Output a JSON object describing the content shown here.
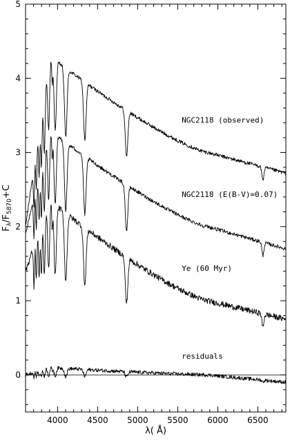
{
  "chart_data": {
    "type": "line",
    "xlabel": "λ( Å)",
    "ylabel": "Fλ/F5870+C",
    "ylabel_parts": {
      "base": "F",
      "lambda": "λ",
      "sep": "/F",
      "sub": "5870",
      "tail": "+C"
    },
    "xlim": [
      3600,
      6850
    ],
    "ylim": [
      -0.5,
      5
    ],
    "xticks": [
      4000,
      4500,
      5000,
      5500,
      6000,
      6500
    ],
    "yticks": [
      0,
      1,
      2,
      3,
      4,
      5
    ],
    "grid": false,
    "zero_line": 0,
    "lines": [
      {
        "offset": 2.85,
        "y_start": 2.0,
        "y_5870": 3.0,
        "y_end": 2.72,
        "peak": 1.3,
        "depth": 1.0,
        "noise": 0.05
      },
      {
        "offset": 1.85,
        "y_start": 1.9,
        "y_5870": 2.0,
        "y_end": 1.7,
        "peak": 1.3,
        "depth": 1.0,
        "noise": 0.05
      },
      {
        "offset": 0.85,
        "y_start": 1.4,
        "y_5870": 1.0,
        "y_end": 0.75,
        "peak": 1.35,
        "depth": 1.0,
        "noise": 0.08
      },
      {
        "offset": 0.0,
        "y_start": 0.0,
        "y_5870": 0.0,
        "y_end": -0.1,
        "peak": 0.1,
        "depth": 0.12,
        "noise": 0.05
      }
    ],
    "annotations": [
      {
        "text": "NGC2118 (observed)",
        "x": 5550,
        "y": 3.4
      },
      {
        "text": "NGC2118 (E(B-V)=0.07)",
        "x": 5550,
        "y": 2.4
      },
      {
        "text": "Ye (60 Myr)",
        "x": 5550,
        "y": 1.4
      },
      {
        "text": "residuals",
        "x": 5550,
        "y": 0.22
      }
    ]
  }
}
